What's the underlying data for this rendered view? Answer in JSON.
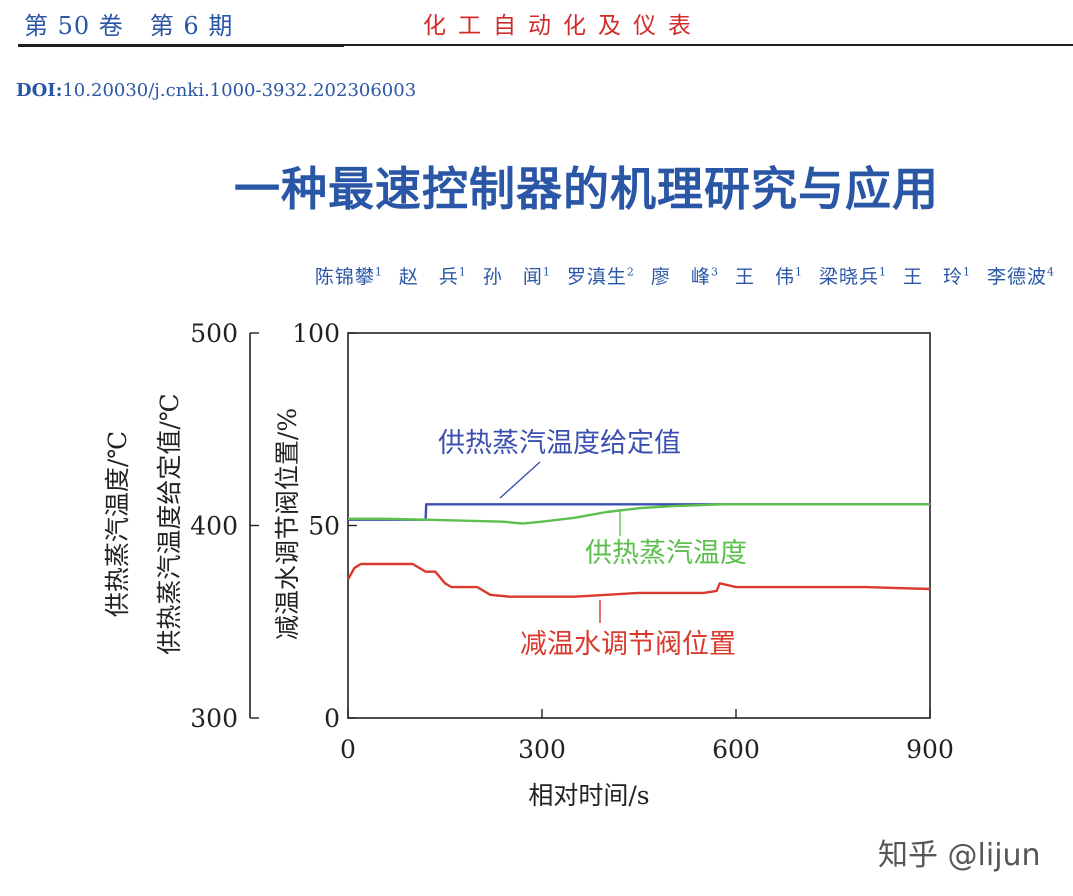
{
  "header": {
    "volume": "第 50 卷",
    "issue": "第 6 期",
    "journal": "化工自动化及仪表"
  },
  "doi": {
    "label": "DOI:",
    "value": "10.20030/j.cnki.1000-3932.202306003"
  },
  "title": "一种最速控制器的机理研究与应用",
  "authors": [
    {
      "name": "陈锦攀",
      "aff": "1"
    },
    {
      "name": "赵　兵",
      "aff": "1"
    },
    {
      "name": "孙　闻",
      "aff": "1"
    },
    {
      "name": "罗滇生",
      "aff": "2"
    },
    {
      "name": "廖　峰",
      "aff": "3"
    },
    {
      "name": "王　伟",
      "aff": "1"
    },
    {
      "name": "梁晓兵",
      "aff": "1"
    },
    {
      "name": "王　玲",
      "aff": "1"
    },
    {
      "name": "李德波",
      "aff": "4"
    }
  ],
  "watermark": "知乎 @lijun",
  "chart_data": {
    "type": "line",
    "xlabel": "相对时间/s",
    "ylabel_left": [
      "供热蒸汽温度/℃",
      "供热蒸汽温度给定值/℃"
    ],
    "ylabel_right": "减温水调节阀位置/%",
    "xlim": [
      0,
      900
    ],
    "ylim_left": [
      300,
      500
    ],
    "ylim_right": [
      0,
      100
    ],
    "x_ticks": [
      "0",
      "300",
      "600",
      "900"
    ],
    "y_ticks_left": [
      "500",
      "400",
      "300"
    ],
    "y_ticks_right": [
      "100",
      "50",
      "0"
    ],
    "grid": false,
    "series": [
      {
        "name": "供热蒸汽温度给定值",
        "color": "#3b4fb0",
        "axis": "left",
        "x": [
          0,
          120,
          121,
          900
        ],
        "y": [
          403,
          403,
          411,
          411
        ]
      },
      {
        "name": "供热蒸汽温度",
        "color": "#5cbf4e",
        "axis": "left",
        "x": [
          0,
          60,
          120,
          180,
          240,
          270,
          300,
          350,
          400,
          450,
          500,
          580,
          600,
          700,
          800,
          900
        ],
        "y": [
          403.5,
          403.5,
          403,
          402.5,
          402,
          401,
          402,
          404,
          407,
          409,
          410,
          411,
          411,
          411,
          411,
          411
        ]
      },
      {
        "name": "减温水调节阀位置",
        "color": "#d93a2e",
        "axis": "right",
        "x": [
          0,
          10,
          20,
          30,
          100,
          120,
          135,
          150,
          160,
          200,
          220,
          250,
          300,
          350,
          400,
          450,
          500,
          550,
          570,
          575,
          600,
          650,
          700,
          750,
          800,
          900
        ],
        "y": [
          36,
          39,
          40,
          40,
          40,
          38,
          38,
          35,
          34,
          34,
          32,
          31.5,
          31.5,
          31.5,
          32,
          32.5,
          32.5,
          32.5,
          33,
          35,
          34,
          34,
          34,
          34,
          34,
          33.5
        ]
      }
    ],
    "annotations": [
      {
        "text": "供热蒸汽温度给定值",
        "color": "#3b4fb0"
      },
      {
        "text": "供热蒸汽温度",
        "color": "#5cbf4e"
      },
      {
        "text": "减温水调节阀位置",
        "color": "#d93a2e"
      }
    ]
  }
}
